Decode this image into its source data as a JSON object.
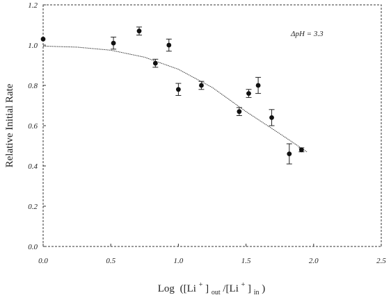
{
  "chart_data": {
    "type": "scatter",
    "title": "",
    "xlabel": "",
    "ylabel": "Relative Initial Rate",
    "xlabel_parts": {
      "log": "Log",
      "open": "([Li",
      "sup": "+",
      "close": "]",
      "sub_out": "out",
      "slash": "/[Li",
      "sup2": "+",
      "close2": "]",
      "sub_in": "in",
      "end": ")"
    },
    "annotation": "ΔpH = 3.3",
    "legend_position": "top-right",
    "xlim": [
      0.0,
      2.5
    ],
    "ylim": [
      0.0,
      1.2
    ],
    "x_ticks": [
      0.0,
      0.5,
      1.0,
      1.5,
      2.0,
      2.5
    ],
    "x_tick_labels": [
      "0.0",
      "0.5",
      "1.0",
      "1.5",
      "2.0",
      "2.5"
    ],
    "y_ticks": [
      0.0,
      0.2,
      0.4,
      0.6,
      0.8,
      1.0,
      1.2
    ],
    "y_tick_labels": [
      "0.0",
      "0.2",
      "0.4",
      "0.6",
      "0.8",
      "1.0",
      "1.2"
    ],
    "grid": false,
    "frame": "dashed",
    "series": [
      {
        "kind": "points-with-error-bars",
        "x": [
          0.0,
          0.52,
          0.71,
          0.83,
          0.93,
          1.0,
          1.17,
          1.45,
          1.52,
          1.59,
          1.69,
          1.82,
          1.91
        ],
        "y": [
          1.03,
          1.01,
          1.07,
          0.91,
          1.0,
          0.78,
          0.8,
          0.67,
          0.76,
          0.8,
          0.64,
          0.46,
          0.48
        ],
        "err": [
          0.0,
          0.03,
          0.02,
          0.02,
          0.03,
          0.03,
          0.02,
          0.02,
          0.02,
          0.04,
          0.04,
          0.05,
          0.01
        ]
      },
      {
        "kind": "fit-curve",
        "x": [
          0.0,
          0.25,
          0.5,
          0.75,
          1.0,
          1.25,
          1.5,
          1.75,
          1.95
        ],
        "y": [
          0.995,
          0.99,
          0.975,
          0.94,
          0.88,
          0.79,
          0.67,
          0.56,
          0.47
        ]
      }
    ]
  }
}
